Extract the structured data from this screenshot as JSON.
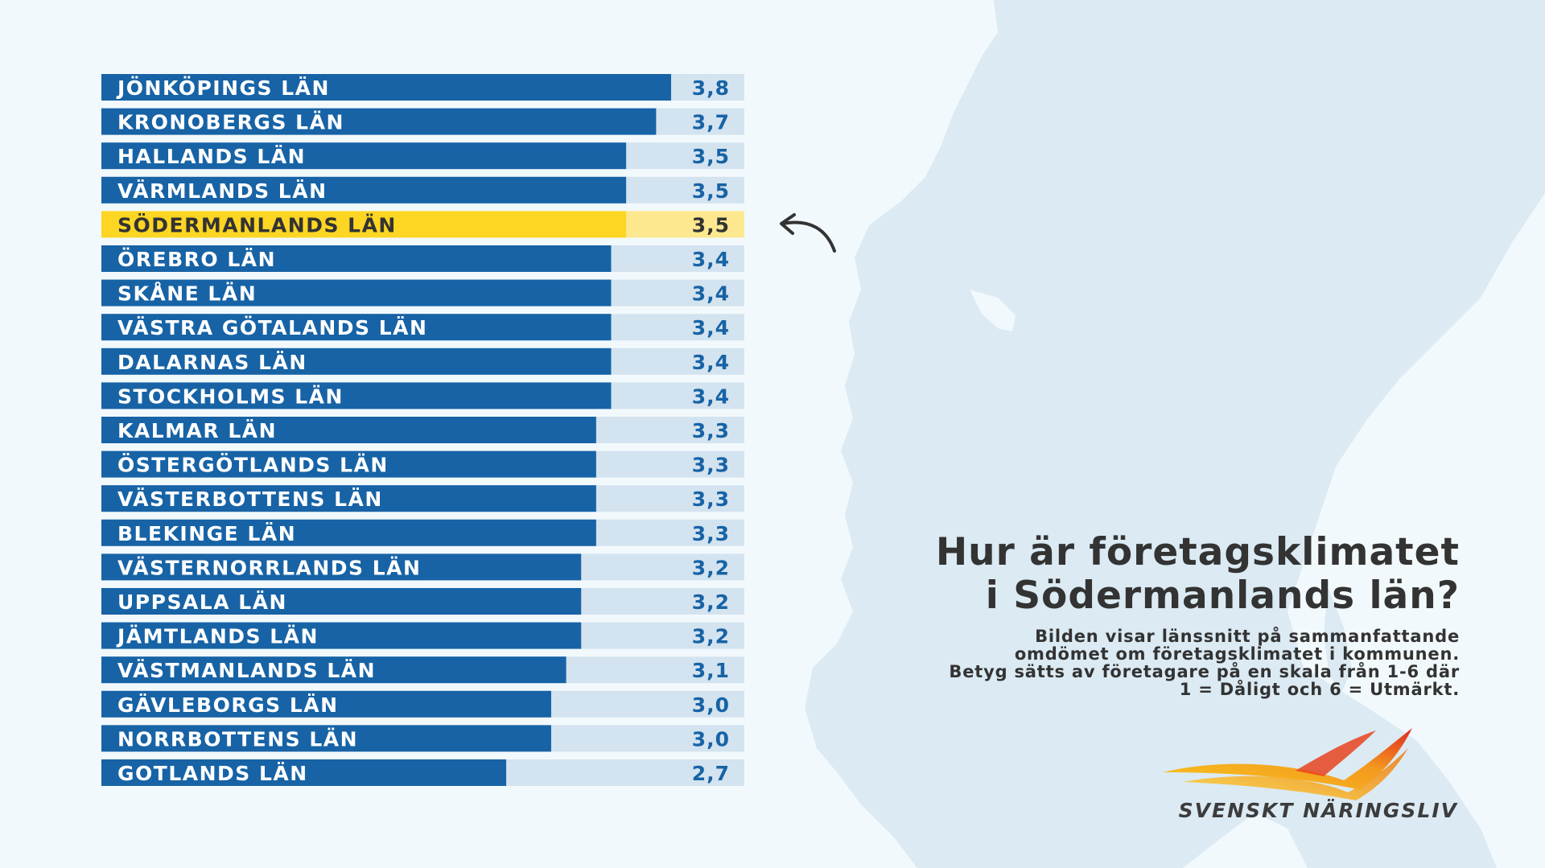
{
  "colors": {
    "background": "#f2f9fc",
    "map": "#dbeaf3",
    "bar": "#1763a6",
    "bar_track": "#d3e3ef",
    "value_text": "#1763a6",
    "highlight_bar": "#fdd523",
    "highlight_track": "#fde88f",
    "highlight_text": "#333333",
    "heading_text": "#333333"
  },
  "chart_data": {
    "type": "bar",
    "orientation": "horizontal",
    "highlight": "SÖDERMANLANDS LÄN",
    "categories": [
      "JÖNKÖPINGS LÄN",
      "KRONOBERGS LÄN",
      "HALLANDS LÄN",
      "VÄRMLANDS LÄN",
      "SÖDERMANLANDS LÄN",
      "ÖREBRO LÄN",
      "SKÅNE LÄN",
      "VÄSTRA GÖTALANDS LÄN",
      "DALARNAS LÄN",
      "STOCKHOLMS LÄN",
      "KALMAR LÄN",
      "ÖSTERGÖTLANDS LÄN",
      "VÄSTERBOTTENS LÄN",
      "BLEKINGE LÄN",
      "VÄSTERNORRLANDS LÄN",
      "UPPSALA LÄN",
      "JÄMTLANDS LÄN",
      "VÄSTMANLANDS LÄN",
      "GÄVLEBORGS LÄN",
      "NORRBOTTENS LÄN",
      "GOTLANDS LÄN"
    ],
    "values": [
      3.8,
      3.7,
      3.5,
      3.5,
      3.5,
      3.4,
      3.4,
      3.4,
      3.4,
      3.4,
      3.3,
      3.3,
      3.3,
      3.3,
      3.2,
      3.2,
      3.2,
      3.1,
      3.0,
      3.0,
      2.7
    ],
    "value_labels": [
      "3,8",
      "3,7",
      "3,5",
      "3,5",
      "3,5",
      "3,4",
      "3,4",
      "3,4",
      "3,4",
      "3,4",
      "3,3",
      "3,3",
      "3,3",
      "3,3",
      "3,2",
      "3,2",
      "3,2",
      "3,1",
      "3,0",
      "3,0",
      "2,7"
    ]
  },
  "heading": {
    "title_line1": "Hur är företagsklimatet",
    "title_line2": "i Södermanlands län?",
    "description": "Bilden visar länssnitt på sammanfattande\nomdömet om företagsklimatet i kommunen.\nBetyg sätts av företagare på en skala från 1-6 där\n1 = Dåligt och 6 = Utmärkt."
  },
  "logo": {
    "text": "SVENSKT NÄRINGSLIV",
    "icon": "flame-wings-icon"
  },
  "arrow_icon": "curved-arrow-icon"
}
